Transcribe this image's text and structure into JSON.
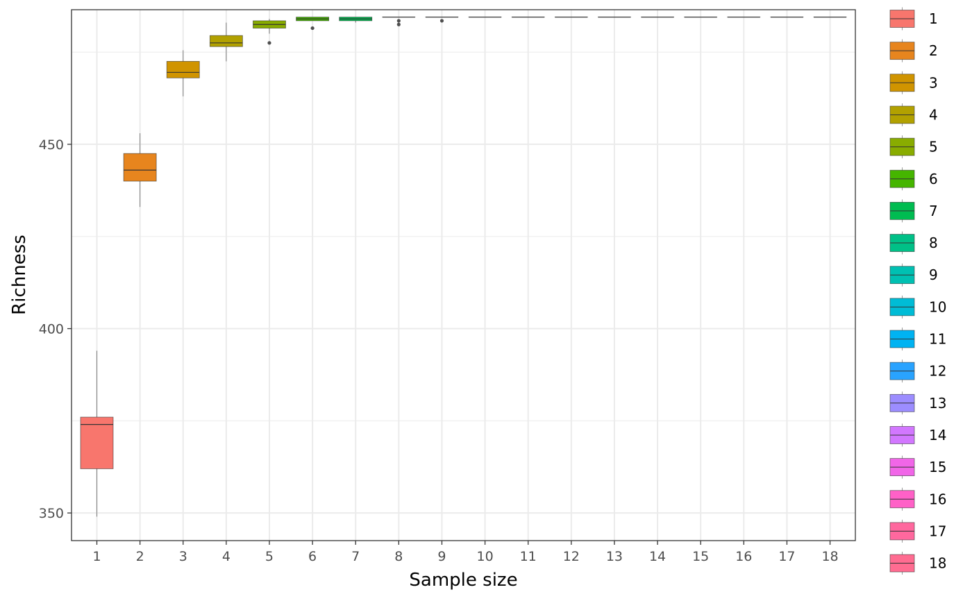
{
  "chart_data": {
    "type": "boxplot",
    "title": "",
    "xlabel": "Sample size",
    "ylabel": "Richness",
    "ylim": [
      342.5,
      486.5
    ],
    "yticks": [
      350,
      400,
      450
    ],
    "grid": true,
    "legend": {
      "title": "",
      "position": "right",
      "entries": [
        "1",
        "2",
        "3",
        "4",
        "5",
        "6",
        "7",
        "8",
        "9",
        "10",
        "11",
        "12",
        "13",
        "14",
        "15",
        "16",
        "17",
        "18"
      ]
    },
    "colors": [
      "#F8766D",
      "#E7851E",
      "#D09400",
      "#B2A100",
      "#89AC00",
      "#45B500",
      "#00BC51",
      "#00C087",
      "#00C0B2",
      "#00BCD6",
      "#00B3F2",
      "#29A3FF",
      "#9C8DFF",
      "#D277FF",
      "#F166E8",
      "#FF61C7",
      "#FF689E",
      "#FF6C91"
    ],
    "categories": [
      "1",
      "2",
      "3",
      "4",
      "5",
      "6",
      "7",
      "8",
      "9",
      "10",
      "11",
      "12",
      "13",
      "14",
      "15",
      "16",
      "17",
      "18"
    ],
    "boxes": [
      {
        "x": "1",
        "whisker_low": 349,
        "q1": 362,
        "median": 374,
        "q3": 376,
        "whisker_high": 394,
        "outliers": []
      },
      {
        "x": "2",
        "whisker_low": 433,
        "q1": 440,
        "median": 443,
        "q3": 447.5,
        "whisker_high": 453,
        "outliers": []
      },
      {
        "x": "3",
        "whisker_low": 463,
        "q1": 468,
        "median": 469.5,
        "q3": 472.5,
        "whisker_high": 475.5,
        "outliers": []
      },
      {
        "x": "4",
        "whisker_low": 472.5,
        "q1": 476.5,
        "median": 477.5,
        "q3": 479.5,
        "whisker_high": 483,
        "outliers": []
      },
      {
        "x": "5",
        "whisker_low": 480,
        "q1": 481.5,
        "median": 482.5,
        "q3": 483.5,
        "whisker_high": 484,
        "outliers": [
          477.5
        ]
      },
      {
        "x": "6",
        "whisker_low": 483.5,
        "q1": 483.5,
        "median": 484,
        "q3": 484.5,
        "whisker_high": 484.5,
        "outliers": [
          481.5
        ]
      },
      {
        "x": "7",
        "whisker_low": 483,
        "q1": 483.5,
        "median": 484,
        "q3": 484.5,
        "whisker_high": 484.5,
        "outliers": []
      },
      {
        "x": "8",
        "whisker_low": 484.5,
        "q1": 484.5,
        "median": 484.5,
        "q3": 484.5,
        "whisker_high": 484.5,
        "outliers": [
          483.5,
          482.5
        ]
      },
      {
        "x": "9",
        "whisker_low": 484.5,
        "q1": 484.5,
        "median": 484.5,
        "q3": 484.5,
        "whisker_high": 484.5,
        "outliers": [
          483.5
        ]
      },
      {
        "x": "10",
        "whisker_low": 484.5,
        "q1": 484.5,
        "median": 484.5,
        "q3": 484.5,
        "whisker_high": 484.5,
        "outliers": []
      },
      {
        "x": "11",
        "whisker_low": 484.5,
        "q1": 484.5,
        "median": 484.5,
        "q3": 484.5,
        "whisker_high": 484.5,
        "outliers": []
      },
      {
        "x": "12",
        "whisker_low": 484.5,
        "q1": 484.5,
        "median": 484.5,
        "q3": 484.5,
        "whisker_high": 484.5,
        "outliers": []
      },
      {
        "x": "13",
        "whisker_low": 484.5,
        "q1": 484.5,
        "median": 484.5,
        "q3": 484.5,
        "whisker_high": 484.5,
        "outliers": []
      },
      {
        "x": "14",
        "whisker_low": 484.5,
        "q1": 484.5,
        "median": 484.5,
        "q3": 484.5,
        "whisker_high": 484.5,
        "outliers": []
      },
      {
        "x": "15",
        "whisker_low": 484.5,
        "q1": 484.5,
        "median": 484.5,
        "q3": 484.5,
        "whisker_high": 484.5,
        "outliers": []
      },
      {
        "x": "16",
        "whisker_low": 484.5,
        "q1": 484.5,
        "median": 484.5,
        "q3": 484.5,
        "whisker_high": 484.5,
        "outliers": []
      },
      {
        "x": "17",
        "whisker_low": 484.5,
        "q1": 484.5,
        "median": 484.5,
        "q3": 484.5,
        "whisker_high": 484.5,
        "outliers": []
      },
      {
        "x": "18",
        "whisker_low": 484.5,
        "q1": 484.5,
        "median": 484.5,
        "q3": 484.5,
        "whisker_high": 484.5,
        "outliers": []
      }
    ]
  }
}
